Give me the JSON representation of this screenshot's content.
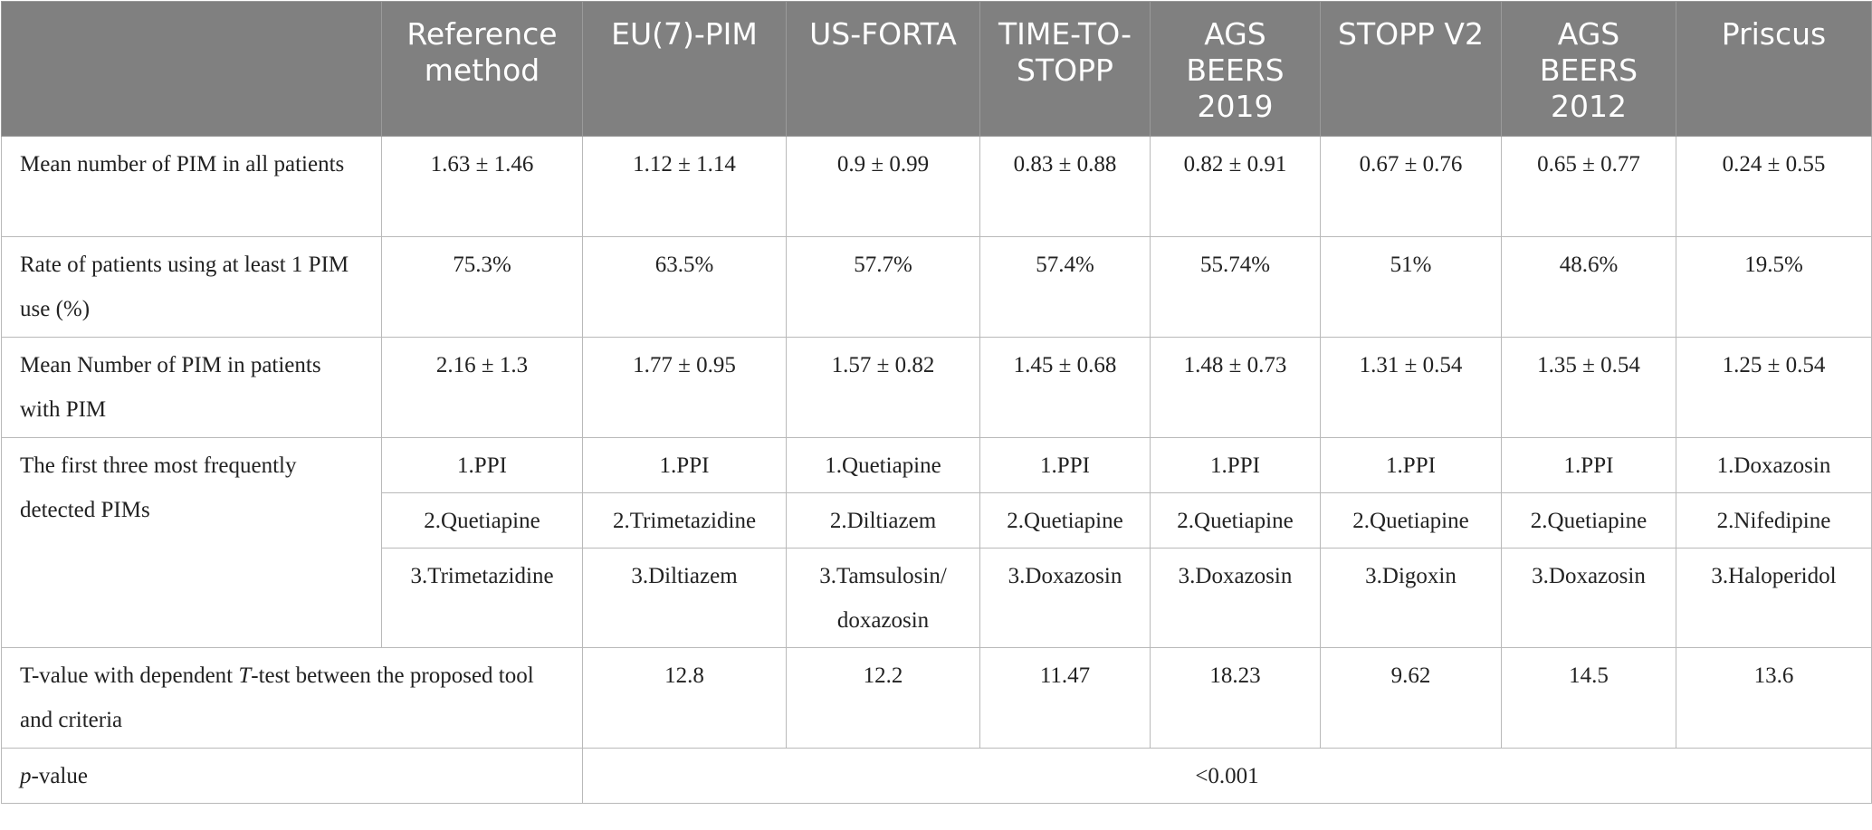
{
  "header": [
    "",
    "Reference method",
    "EU(7)-PIM",
    "US-FORTA",
    "TIME-TO-STOPP",
    "AGS BEERS 2019",
    "STOPP V2",
    "AGS BEERS 2012",
    "Priscus"
  ],
  "rows": [
    {
      "label": "Mean number of PIM in all patients",
      "values": [
        "1.63 ± 1.46",
        "1.12 ± 1.14",
        "0.9 ± 0.99",
        "0.83 ± 0.88",
        "0.82 ± 0.91",
        "0.67 ± 0.76",
        "0.65 ± 0.77",
        "0.24 ± 0.55"
      ]
    },
    {
      "label": "Rate of patients using at least 1 PIM use (%)",
      "values": [
        "75.3%",
        "63.5%",
        "57.7%",
        "57.4%",
        "55.74%",
        "51%",
        "48.6%",
        "19.5%"
      ]
    },
    {
      "label": "Mean Number of PIM in patients with PIM",
      "values": [
        "2.16 ± 1.3",
        "1.77 ± 0.95",
        "1.57 ± 0.82",
        "1.45 ± 0.68",
        "1.48 ± 0.73",
        "1.31 ± 0.54",
        "1.35 ± 0.54",
        "1.25 ± 0.54"
      ]
    }
  ],
  "frequent": {
    "label": "The first three most frequently detected PIMs",
    "rows": [
      [
        "1.PPI",
        "1.PPI",
        "1.Quetiapine",
        "1.PPI",
        "1.PPI",
        "1.PPI",
        "1.PPI",
        "1.Doxazosin"
      ],
      [
        "2.Quetiapine",
        "2.Trimetazidine",
        "2.Diltiazem",
        "2.Quetiapine",
        "2.Quetiapine",
        "2.Quetiapine",
        "2.Quetiapine",
        "2.Nifedipine"
      ],
      [
        "3.Trimetazidine",
        "3.Diltiazem",
        "3.Tamsulosin/ doxazosin",
        "3.Doxazosin",
        "3.Doxazosin",
        "3.Digoxin",
        "3.Doxazosin",
        "3.Haloperidol"
      ]
    ]
  },
  "ttest": {
    "label_pre": "T-value with dependent ",
    "label_italic": "T",
    "label_post": "-test between the proposed tool and criteria",
    "values": [
      "12.8",
      "12.2",
      "11.47",
      "18.23",
      "9.62",
      "14.5",
      "13.6"
    ]
  },
  "pvalue": {
    "label_italic": "p",
    "label_post": "-value",
    "value": "<0.001"
  }
}
